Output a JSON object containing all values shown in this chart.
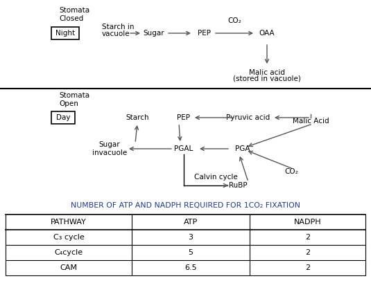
{
  "title_table": "NUMBER OF ATP AND NADPH REQUIRED FOR 1CO₂ FIXATION",
  "title_color": "#1e3a8a",
  "table_header": [
    "PATHWAY",
    "ATP",
    "NADPH"
  ],
  "table_rows": [
    [
      "C₃ cycle",
      "3",
      "2"
    ],
    [
      "C₄cycle",
      "5",
      "2"
    ],
    [
      "CAM",
      "6.5",
      "2"
    ]
  ],
  "night_label": "Night",
  "day_label": "Day",
  "stomata_closed": "Stomata\nClosed",
  "stomata_open": "Stomata\nOpen",
  "bg_color": "#ffffff",
  "text_color": "#000000",
  "arrow_color": "#555555",
  "font_size_labels": 7.5,
  "font_size_box": 7.5,
  "font_size_table_header": 8.0,
  "font_size_table_data": 8.0,
  "font_size_title": 7.8
}
